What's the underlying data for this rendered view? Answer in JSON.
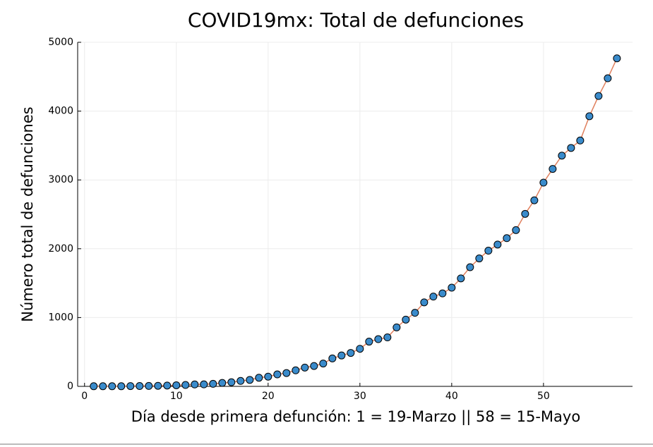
{
  "chart_data": {
    "type": "line",
    "title": "COVID19mx: Total de defunciones",
    "x_label": "Día desde primera defunción: 1 = 19-Marzo || 58 = 15-Mayo",
    "y_label": "Número total de defunciones",
    "x": [
      1,
      2,
      3,
      4,
      5,
      6,
      7,
      8,
      9,
      10,
      11,
      12,
      13,
      14,
      15,
      16,
      17,
      18,
      19,
      20,
      21,
      22,
      23,
      24,
      25,
      26,
      27,
      28,
      29,
      30,
      31,
      32,
      33,
      34,
      35,
      36,
      37,
      38,
      39,
      40,
      41,
      42,
      43,
      44,
      45,
      46,
      47,
      48,
      49,
      50,
      51,
      52,
      53,
      54,
      55,
      56,
      57,
      58
    ],
    "series": [
      {
        "line_color": "#e0805e",
        "color": "#3a8bcb",
        "values": [
          2,
          2,
          2,
          2,
          4,
          5,
          6,
          8,
          12,
          16,
          20,
          28,
          29,
          37,
          50,
          60,
          79,
          94,
          125,
          141,
          174,
          194,
          233,
          273,
          296,
          332,
          406,
          449,
          486,
          546,
          650,
          686,
          712,
          857,
          970,
          1069,
          1221,
          1305,
          1351,
          1434,
          1569,
          1732,
          1859,
          1972,
          2061,
          2154,
          2271,
          2507,
          2704,
          2961,
          3160,
          3353,
          3465,
          3573,
          3926,
          4220,
          4477,
          4767
        ]
      }
    ],
    "xlim": [
      -0.75,
      59.7
    ],
    "xticks": [
      0,
      10,
      20,
      30,
      40,
      50
    ],
    "ylim": [
      0,
      5000
    ],
    "yticks": [
      0,
      1000,
      2000,
      3000,
      4000,
      5000
    ],
    "grid": true
  }
}
